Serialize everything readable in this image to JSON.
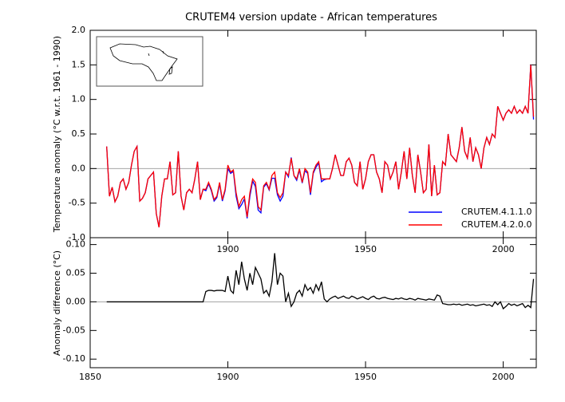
{
  "chart_data": [
    {
      "type": "line",
      "title": "CRUTEM4 version update - African temperatures",
      "y_label": "Temperature anomaly (°C w.r.t. 1961 - 1990)",
      "x": [
        1856,
        1857,
        1858,
        1859,
        1860,
        1861,
        1862,
        1863,
        1864,
        1865,
        1866,
        1867,
        1868,
        1869,
        1870,
        1871,
        1872,
        1873,
        1874,
        1875,
        1876,
        1877,
        1878,
        1879,
        1880,
        1881,
        1882,
        1883,
        1884,
        1885,
        1886,
        1887,
        1888,
        1889,
        1890,
        1891,
        1892,
        1893,
        1894,
        1895,
        1896,
        1897,
        1898,
        1899,
        1900,
        1901,
        1902,
        1903,
        1904,
        1905,
        1906,
        1907,
        1908,
        1909,
        1910,
        1911,
        1912,
        1913,
        1914,
        1915,
        1916,
        1917,
        1918,
        1919,
        1920,
        1921,
        1922,
        1923,
        1924,
        1925,
        1926,
        1927,
        1928,
        1929,
        1930,
        1931,
        1932,
        1933,
        1934,
        1935,
        1936,
        1937,
        1938,
        1939,
        1940,
        1941,
        1942,
        1943,
        1944,
        1945,
        1946,
        1947,
        1948,
        1949,
        1950,
        1951,
        1952,
        1953,
        1954,
        1955,
        1956,
        1957,
        1958,
        1959,
        1960,
        1961,
        1962,
        1963,
        1964,
        1965,
        1966,
        1967,
        1968,
        1969,
        1970,
        1971,
        1972,
        1973,
        1974,
        1975,
        1976,
        1977,
        1978,
        1979,
        1980,
        1981,
        1982,
        1983,
        1984,
        1985,
        1986,
        1987,
        1988,
        1989,
        1990,
        1991,
        1992,
        1993,
        1994,
        1995,
        1996,
        1997,
        1998,
        1999,
        2000,
        2001,
        2002,
        2003,
        2004,
        2005,
        2006,
        2007,
        2008,
        2009,
        2010,
        2011
      ],
      "series": [
        {
          "name": "CRUTEM.4.1.1.0",
          "color": "#0000ff",
          "values": [
            0.32,
            -0.4,
            -0.27,
            -0.48,
            -0.4,
            -0.2,
            -0.15,
            -0.3,
            -0.2,
            0.05,
            0.25,
            0.32,
            -0.47,
            -0.43,
            -0.35,
            -0.15,
            -0.1,
            -0.05,
            -0.65,
            -0.85,
            -0.4,
            -0.15,
            -0.15,
            0.1,
            -0.38,
            -0.35,
            0.25,
            -0.4,
            -0.6,
            -0.35,
            -0.3,
            -0.35,
            -0.15,
            0.1,
            -0.45,
            -0.3,
            -0.32,
            -0.22,
            -0.32,
            -0.47,
            -0.42,
            -0.22,
            -0.47,
            -0.32,
            0.0,
            -0.07,
            -0.04,
            -0.4,
            -0.58,
            -0.52,
            -0.44,
            -0.72,
            -0.4,
            -0.18,
            -0.26,
            -0.6,
            -0.64,
            -0.27,
            -0.22,
            -0.31,
            -0.14,
            -0.14,
            -0.38,
            -0.47,
            -0.4,
            -0.05,
            -0.12,
            0.16,
            -0.1,
            -0.17,
            -0.02,
            -0.21,
            -0.03,
            -0.07,
            -0.38,
            -0.07,
            0.02,
            0.08,
            -0.19,
            -0.16,
            -0.15,
            -0.15,
            0.0,
            0.2,
            0.05,
            -0.1,
            -0.1,
            0.1,
            0.15,
            0.05,
            -0.2,
            -0.25,
            0.1,
            -0.3,
            -0.15,
            0.1,
            0.2,
            0.2,
            -0.05,
            -0.15,
            -0.35,
            0.1,
            0.05,
            -0.15,
            -0.05,
            0.1,
            -0.3,
            -0.05,
            0.25,
            -0.15,
            0.3,
            -0.1,
            -0.35,
            0.2,
            -0.05,
            -0.35,
            -0.3,
            0.35,
            -0.4,
            0.05,
            -0.38,
            -0.35,
            0.1,
            0.05,
            0.5,
            0.2,
            0.15,
            0.1,
            0.3,
            0.6,
            0.25,
            0.15,
            0.45,
            0.1,
            0.3,
            0.2,
            0.0,
            0.3,
            0.45,
            0.35,
            0.5,
            0.45,
            0.9,
            0.8,
            0.7,
            0.8,
            0.85,
            0.8,
            0.9,
            0.8,
            0.85,
            0.8,
            0.9,
            0.8,
            1.5,
            0.71
          ]
        },
        {
          "name": "CRUTEM.4.2.0.0",
          "color": "#ff0000",
          "values": [
            0.32,
            -0.4,
            -0.27,
            -0.48,
            -0.4,
            -0.2,
            -0.15,
            -0.3,
            -0.2,
            0.05,
            0.25,
            0.32,
            -0.47,
            -0.43,
            -0.35,
            -0.15,
            -0.1,
            -0.05,
            -0.65,
            -0.85,
            -0.4,
            -0.15,
            -0.15,
            0.1,
            -0.38,
            -0.35,
            0.25,
            -0.4,
            -0.6,
            -0.35,
            -0.3,
            -0.35,
            -0.15,
            0.1,
            -0.45,
            -0.3,
            -0.3,
            -0.2,
            -0.3,
            -0.45,
            -0.4,
            -0.2,
            -0.45,
            -0.3,
            0.05,
            -0.05,
            -0.02,
            -0.35,
            -0.55,
            -0.45,
            -0.4,
            -0.7,
            -0.35,
            -0.15,
            -0.2,
            -0.55,
            -0.6,
            -0.25,
            -0.2,
            -0.3,
            -0.1,
            -0.05,
            -0.35,
            -0.42,
            -0.35,
            -0.05,
            -0.1,
            0.15,
            -0.1,
            -0.15,
            0.0,
            -0.2,
            0.0,
            -0.05,
            -0.35,
            -0.05,
            0.05,
            0.1,
            -0.15,
            -0.15,
            -0.15,
            -0.15,
            0.0,
            0.2,
            0.05,
            -0.1,
            -0.1,
            0.1,
            0.15,
            0.05,
            -0.2,
            -0.25,
            0.1,
            -0.3,
            -0.15,
            0.1,
            0.2,
            0.2,
            -0.05,
            -0.15,
            -0.35,
            0.1,
            0.05,
            -0.15,
            -0.05,
            0.1,
            -0.3,
            -0.05,
            0.25,
            -0.15,
            0.3,
            -0.1,
            -0.35,
            0.2,
            -0.05,
            -0.35,
            -0.3,
            0.35,
            -0.4,
            0.05,
            -0.38,
            -0.35,
            0.1,
            0.05,
            0.5,
            0.2,
            0.15,
            0.1,
            0.3,
            0.6,
            0.25,
            0.15,
            0.45,
            0.1,
            0.3,
            0.2,
            0.0,
            0.3,
            0.45,
            0.35,
            0.5,
            0.45,
            0.9,
            0.8,
            0.7,
            0.8,
            0.85,
            0.8,
            0.9,
            0.8,
            0.85,
            0.8,
            0.9,
            0.8,
            1.5,
            0.75
          ]
        }
      ],
      "xlim": [
        1850,
        2012
      ],
      "xticks": [
        1900,
        1950,
        2000
      ],
      "ylim": [
        -1,
        2
      ],
      "yticks": [
        {
          "value": -1,
          "label": "-1.0"
        },
        -0.5,
        {
          "value": 0,
          "label": "0.0"
        },
        0.5,
        {
          "value": 1,
          "label": "1.0"
        },
        1.5,
        {
          "value": 2,
          "label": "2.0"
        }
      ],
      "legend": "lower right"
    },
    {
      "type": "line",
      "y_label": "Anomaly difference (°C)",
      "x": [
        1856,
        1857,
        1858,
        1859,
        1860,
        1861,
        1862,
        1863,
        1864,
        1865,
        1866,
        1867,
        1868,
        1869,
        1870,
        1871,
        1872,
        1873,
        1874,
        1875,
        1876,
        1877,
        1878,
        1879,
        1880,
        1881,
        1882,
        1883,
        1884,
        1885,
        1886,
        1887,
        1888,
        1889,
        1890,
        1891,
        1892,
        1893,
        1894,
        1895,
        1896,
        1897,
        1898,
        1899,
        1900,
        1901,
        1902,
        1903,
        1904,
        1905,
        1906,
        1907,
        1908,
        1909,
        1910,
        1911,
        1912,
        1913,
        1914,
        1915,
        1916,
        1917,
        1918,
        1919,
        1920,
        1921,
        1922,
        1923,
        1924,
        1925,
        1926,
        1927,
        1928,
        1929,
        1930,
        1931,
        1932,
        1933,
        1934,
        1935,
        1936,
        1937,
        1938,
        1939,
        1940,
        1941,
        1942,
        1943,
        1944,
        1945,
        1946,
        1947,
        1948,
        1949,
        1950,
        1951,
        1952,
        1953,
        1954,
        1955,
        1956,
        1957,
        1958,
        1959,
        1960,
        1961,
        1962,
        1963,
        1964,
        1965,
        1966,
        1967,
        1968,
        1969,
        1970,
        1971,
        1972,
        1973,
        1974,
        1975,
        1976,
        1977,
        1978,
        1979,
        1980,
        1981,
        1982,
        1983,
        1984,
        1985,
        1986,
        1987,
        1988,
        1989,
        1990,
        1991,
        1992,
        1993,
        1994,
        1995,
        1996,
        1997,
        1998,
        1999,
        2000,
        2001,
        2002,
        2003,
        2004,
        2005,
        2006,
        2007,
        2008,
        2009,
        2010,
        2011
      ],
      "series": [
        {
          "color": "#000000",
          "values": [
            0,
            0,
            0,
            0,
            0,
            0,
            0,
            0,
            0,
            0,
            0,
            0,
            0,
            0,
            0,
            0,
            0,
            0,
            0,
            0,
            0,
            0,
            0,
            0,
            0,
            0,
            0,
            0,
            0,
            0,
            0,
            0,
            0,
            0,
            0,
            0,
            0.018,
            0.02,
            0.02,
            0.019,
            0.02,
            0.02,
            0.02,
            0.018,
            0.045,
            0.02,
            0.015,
            0.055,
            0.03,
            0.07,
            0.04,
            0.02,
            0.05,
            0.03,
            0.06,
            0.05,
            0.04,
            0.015,
            0.02,
            0.01,
            0.035,
            0.085,
            0.03,
            0.05,
            0.045,
            0.0,
            0.015,
            -0.008,
            0.0,
            0.015,
            0.02,
            0.01,
            0.03,
            0.02,
            0.025,
            0.015,
            0.03,
            0.02,
            0.035,
            0.005,
            0.0,
            0.005,
            0.008,
            0.01,
            0.006,
            0.008,
            0.01,
            0.007,
            0.006,
            0.01,
            0.008,
            0.005,
            0.007,
            0.009,
            0.006,
            0.004,
            0.008,
            0.01,
            0.006,
            0.005,
            0.007,
            0.008,
            0.006,
            0.005,
            0.004,
            0.006,
            0.005,
            0.007,
            0.005,
            0.004,
            0.006,
            0.005,
            0.003,
            0.006,
            0.005,
            0.004,
            0.003,
            0.005,
            0.004,
            0.003,
            0.012,
            0.01,
            -0.003,
            -0.004,
            -0.005,
            -0.005,
            -0.004,
            -0.005,
            -0.004,
            -0.006,
            -0.005,
            -0.004,
            -0.006,
            -0.005,
            -0.007,
            -0.006,
            -0.005,
            -0.004,
            -0.006,
            -0.005,
            -0.008,
            0.0,
            -0.005,
            0.0,
            -0.012,
            -0.008,
            -0.003,
            -0.006,
            -0.004,
            -0.007,
            -0.005,
            -0.003,
            -0.01,
            -0.006,
            -0.01,
            0.04
          ]
        }
      ],
      "xlim": [
        1850,
        2012
      ],
      "xticks": [
        1850,
        1900,
        1950,
        2000
      ],
      "ylim": [
        -0.115,
        0.112
      ],
      "yticks": [
        {
          "value": -0.1,
          "label": "-0.10"
        },
        -0.05,
        {
          "value": 0,
          "label": "0.00"
        },
        0.05,
        {
          "value": 0.1,
          "label": "0.10"
        }
      ]
    }
  ]
}
